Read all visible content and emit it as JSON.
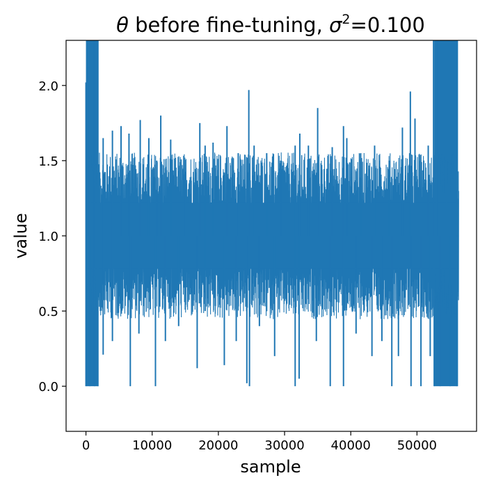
{
  "chart_data": {
    "type": "line",
    "title": "θ before fine-tuning, σ²=0.100",
    "title_parts": {
      "theta": "θ",
      "mid": " before fine-tuning, ",
      "sigma": "σ",
      "sup": "2",
      "end": "=0.100"
    },
    "xlabel": "sample",
    "ylabel": "value",
    "xlim": [
      -3000,
      59000
    ],
    "ylim": [
      -0.3,
      2.3
    ],
    "xticks": [
      0,
      10000,
      20000,
      30000,
      40000,
      50000
    ],
    "xtick_labels": [
      "0",
      "10000",
      "20000",
      "30000",
      "40000",
      "50000"
    ],
    "yticks": [
      0.0,
      0.5,
      1.0,
      1.5,
      2.0
    ],
    "ytick_labels": [
      "0.0",
      "0.5",
      "1.0",
      "1.5",
      "2.0"
    ],
    "grid": false,
    "series": [
      {
        "color": "#1f77b4",
        "x_range": [
          0,
          56300
        ],
        "baseline": 1.0,
        "typical_band": [
          0.55,
          1.45
        ],
        "upper_spikes": [
          {
            "x": 0,
            "y": 2.02
          },
          {
            "x": 300,
            "y": 2.12
          },
          {
            "x": 700,
            "y": 2.3
          },
          {
            "x": 1300,
            "y": 2.3
          },
          {
            "x": 1800,
            "y": 2.3
          },
          {
            "x": 2600,
            "y": 1.65
          },
          {
            "x": 4000,
            "y": 1.7
          },
          {
            "x": 5300,
            "y": 1.73
          },
          {
            "x": 6500,
            "y": 1.68
          },
          {
            "x": 8200,
            "y": 1.77
          },
          {
            "x": 9500,
            "y": 1.65
          },
          {
            "x": 10700,
            "y": 1.5
          },
          {
            "x": 11300,
            "y": 1.8
          },
          {
            "x": 12800,
            "y": 1.64
          },
          {
            "x": 15000,
            "y": 1.42
          },
          {
            "x": 17200,
            "y": 1.75
          },
          {
            "x": 18000,
            "y": 1.6
          },
          {
            "x": 19200,
            "y": 1.62
          },
          {
            "x": 21300,
            "y": 1.73
          },
          {
            "x": 23000,
            "y": 1.55
          },
          {
            "x": 24600,
            "y": 1.97
          },
          {
            "x": 25400,
            "y": 1.6
          },
          {
            "x": 27300,
            "y": 1.55
          },
          {
            "x": 29400,
            "y": 1.5
          },
          {
            "x": 31600,
            "y": 1.6
          },
          {
            "x": 32300,
            "y": 1.68
          },
          {
            "x": 33600,
            "y": 1.6
          },
          {
            "x": 35000,
            "y": 1.85
          },
          {
            "x": 37200,
            "y": 1.59
          },
          {
            "x": 38900,
            "y": 1.73
          },
          {
            "x": 39400,
            "y": 1.65
          },
          {
            "x": 41500,
            "y": 1.55
          },
          {
            "x": 43600,
            "y": 1.6
          },
          {
            "x": 45800,
            "y": 1.5
          },
          {
            "x": 47800,
            "y": 1.72
          },
          {
            "x": 49000,
            "y": 1.96
          },
          {
            "x": 49700,
            "y": 1.78
          },
          {
            "x": 51700,
            "y": 1.6
          },
          {
            "x": 52500,
            "y": 2.3
          },
          {
            "x": 53000,
            "y": 2.3
          },
          {
            "x": 54500,
            "y": 2.3
          },
          {
            "x": 56000,
            "y": 2.3
          }
        ],
        "lower_spikes": [
          {
            "x": 0,
            "y": 0.0
          },
          {
            "x": 600,
            "y": 0.0
          },
          {
            "x": 1300,
            "y": 0.0
          },
          {
            "x": 1800,
            "y": 0.0
          },
          {
            "x": 2600,
            "y": 0.21
          },
          {
            "x": 4000,
            "y": 0.3
          },
          {
            "x": 6700,
            "y": 0.0
          },
          {
            "x": 8000,
            "y": 0.35
          },
          {
            "x": 10500,
            "y": 0.0
          },
          {
            "x": 12000,
            "y": 0.3
          },
          {
            "x": 14000,
            "y": 0.4
          },
          {
            "x": 16800,
            "y": 0.12
          },
          {
            "x": 18000,
            "y": 0.5
          },
          {
            "x": 20900,
            "y": 0.14
          },
          {
            "x": 22700,
            "y": 0.3
          },
          {
            "x": 24300,
            "y": 0.02
          },
          {
            "x": 24700,
            "y": 0.0
          },
          {
            "x": 26200,
            "y": 0.4
          },
          {
            "x": 28500,
            "y": 0.2
          },
          {
            "x": 31600,
            "y": 0.0
          },
          {
            "x": 32200,
            "y": 0.05
          },
          {
            "x": 34800,
            "y": 0.3
          },
          {
            "x": 36900,
            "y": 0.0
          },
          {
            "x": 38900,
            "y": 0.0
          },
          {
            "x": 40800,
            "y": 0.35
          },
          {
            "x": 43200,
            "y": 0.2
          },
          {
            "x": 44700,
            "y": 0.3
          },
          {
            "x": 46200,
            "y": 0.0
          },
          {
            "x": 47200,
            "y": 0.2
          },
          {
            "x": 49100,
            "y": 0.0
          },
          {
            "x": 50600,
            "y": 0.0
          },
          {
            "x": 52000,
            "y": 0.2
          },
          {
            "x": 52600,
            "y": 0.0
          },
          {
            "x": 53500,
            "y": 0.0
          },
          {
            "x": 55000,
            "y": 0.0
          },
          {
            "x": 56000,
            "y": 0.0
          }
        ],
        "dense_regions": [
          {
            "x_start": 0,
            "x_end": 1900,
            "y_min": 0.0,
            "y_max": 2.3
          },
          {
            "x_start": 52600,
            "x_end": 56200,
            "y_min": 0.0,
            "y_max": 2.3
          }
        ],
        "end_point": {
          "x": 56300,
          "y": 1.0
        }
      }
    ]
  }
}
